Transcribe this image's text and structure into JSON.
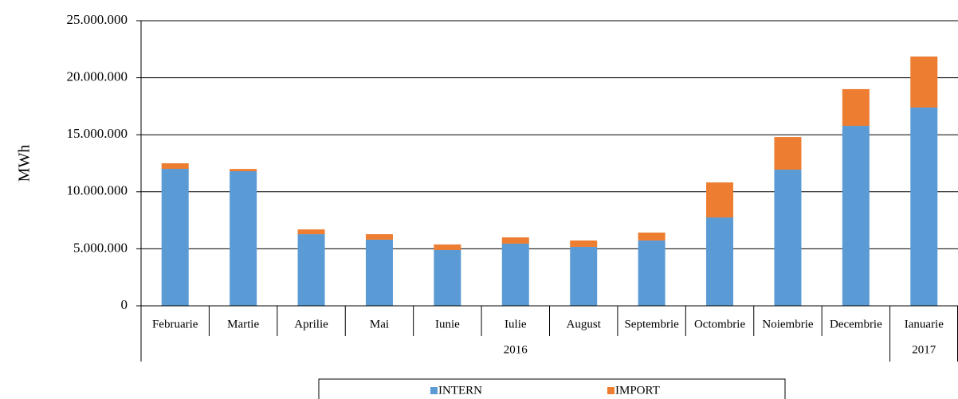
{
  "chart_data": {
    "type": "stacked_bar",
    "y_label": "MWh",
    "categories": [
      "Februarie",
      "Martie",
      "Aprilie",
      "Mai",
      "Iunie",
      "Iulie",
      "August",
      "Septembrie",
      "Octombrie",
      "Noiembrie",
      "Decembrie",
      "Ianuarie"
    ],
    "groups": [
      {
        "label": "2016",
        "count": 11
      },
      {
        "label": "2017",
        "count": 1
      }
    ],
    "series": [
      {
        "name": "INTERN",
        "color": "#5b9bd5",
        "values": [
          12010000,
          11800000,
          6280000,
          5800000,
          4890000,
          5450000,
          5170000,
          5730000,
          7750000,
          11940000,
          15780000,
          17390000
        ]
      },
      {
        "name": "IMPORT",
        "color": "#ed7d31",
        "values": [
          490000,
          200000,
          420000,
          480000,
          490000,
          550000,
          560000,
          690000,
          3070000,
          2860000,
          3220000,
          4470000
        ]
      }
    ],
    "ylim": [
      0,
      25000000
    ],
    "yticks": [
      0,
      {
        "value": 5000000,
        "label": "5.000.000"
      },
      {
        "value": 10000000,
        "label": "10.000.000"
      },
      {
        "value": 15000000,
        "label": "15.000.000"
      },
      {
        "value": 20000000,
        "label": "20.000.000"
      },
      {
        "value": 25000000,
        "label": "25.000.000"
      }
    ],
    "grid": true,
    "legend": "bottom"
  }
}
